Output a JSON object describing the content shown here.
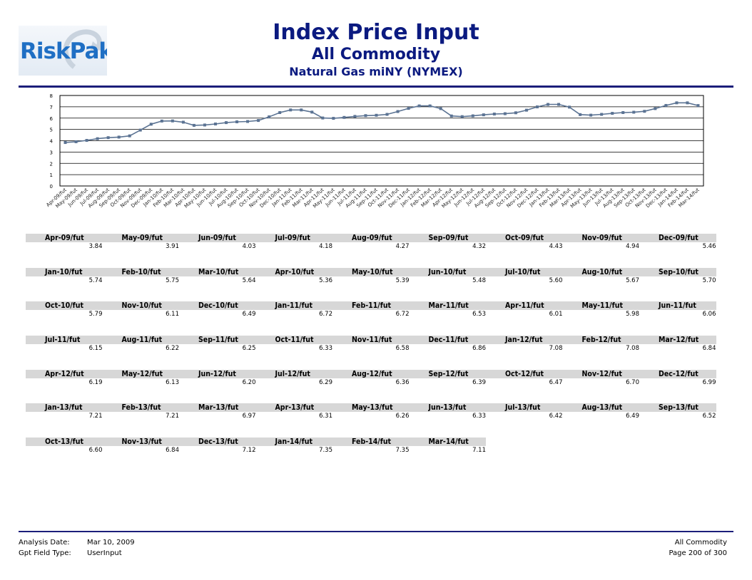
{
  "logo": {
    "text": "RiskPak"
  },
  "header": {
    "title": "Index Price Input",
    "subtitle": "All Commodity",
    "commodity": "Natural Gas miNY (NYMEX)"
  },
  "chart_data": {
    "type": "line",
    "x": [
      "Apr-09/fut",
      "May-09/fut",
      "Jun-09/fut",
      "Jul-09/fut",
      "Aug-09/fut",
      "Sep-09/fut",
      "Oct-09/fut",
      "Nov-09/fut",
      "Dec-09/fut",
      "Jan-10/fut",
      "Feb-10/fut",
      "Mar-10/fut",
      "Apr-10/fut",
      "May-10/fut",
      "Jun-10/fut",
      "Jul-10/fut",
      "Aug-10/fut",
      "Sep-10/fut",
      "Oct-10/fut",
      "Nov-10/fut",
      "Dec-10/fut",
      "Jan-11/fut",
      "Feb-11/fut",
      "Mar-11/fut",
      "Apr-11/fut",
      "May-11/fut",
      "Jun-11/fut",
      "Jul-11/fut",
      "Aug-11/fut",
      "Sep-11/fut",
      "Oct-11/fut",
      "Nov-11/fut",
      "Dec-11/fut",
      "Jan-12/fut",
      "Feb-12/fut",
      "Mar-12/fut",
      "Apr-12/fut",
      "May-12/fut",
      "Jun-12/fut",
      "Jul-12/fut",
      "Aug-12/fut",
      "Sep-12/fut",
      "Oct-12/fut",
      "Nov-12/fut",
      "Dec-12/fut",
      "Jan-13/fut",
      "Feb-13/fut",
      "Mar-13/fut",
      "Apr-13/fut",
      "May-13/fut",
      "Jun-13/fut",
      "Jul-13/fut",
      "Aug-13/fut",
      "Sep-13/fut",
      "Oct-13/fut",
      "Nov-13/fut",
      "Dec-13/fut",
      "Jan-14/fut",
      "Feb-14/fut",
      "Mar-14/fut"
    ],
    "series": [
      {
        "values": [
          3.84,
          3.91,
          4.03,
          4.18,
          4.27,
          4.32,
          4.43,
          4.94,
          5.46,
          5.74,
          5.75,
          5.64,
          5.36,
          5.39,
          5.48,
          5.6,
          5.67,
          5.7,
          5.79,
          6.11,
          6.49,
          6.72,
          6.72,
          6.53,
          6.01,
          5.98,
          6.06,
          6.15,
          6.22,
          6.25,
          6.33,
          6.58,
          6.86,
          7.08,
          7.08,
          6.84,
          6.19,
          6.13,
          6.2,
          6.29,
          6.36,
          6.39,
          6.47,
          6.7,
          6.99,
          7.21,
          7.21,
          6.97,
          6.31,
          6.26,
          6.33,
          6.42,
          6.49,
          6.52,
          6.6,
          6.84,
          7.12,
          7.35,
          7.35,
          7.11
        ]
      }
    ],
    "ylim": [
      0,
      8
    ],
    "yticks": [
      "0",
      "1",
      "2",
      "3",
      "4",
      "5",
      "6",
      "7",
      "8"
    ],
    "grid": true,
    "line_color": "#5b7393"
  },
  "table": {
    "rows": [
      [
        {
          "label": "Apr-09/fut",
          "value": "3.84"
        },
        {
          "label": "May-09/fut",
          "value": "3.91"
        },
        {
          "label": "Jun-09/fut",
          "value": "4.03"
        },
        {
          "label": "Jul-09/fut",
          "value": "4.18"
        },
        {
          "label": "Aug-09/fut",
          "value": "4.27"
        },
        {
          "label": "Sep-09/fut",
          "value": "4.32"
        },
        {
          "label": "Oct-09/fut",
          "value": "4.43"
        },
        {
          "label": "Nov-09/fut",
          "value": "4.94"
        },
        {
          "label": "Dec-09/fut",
          "value": "5.46"
        }
      ],
      [
        {
          "label": "Jan-10/fut",
          "value": "5.74"
        },
        {
          "label": "Feb-10/fut",
          "value": "5.75"
        },
        {
          "label": "Mar-10/fut",
          "value": "5.64"
        },
        {
          "label": "Apr-10/fut",
          "value": "5.36"
        },
        {
          "label": "May-10/fut",
          "value": "5.39"
        },
        {
          "label": "Jun-10/fut",
          "value": "5.48"
        },
        {
          "label": "Jul-10/fut",
          "value": "5.60"
        },
        {
          "label": "Aug-10/fut",
          "value": "5.67"
        },
        {
          "label": "Sep-10/fut",
          "value": "5.70"
        }
      ],
      [
        {
          "label": "Oct-10/fut",
          "value": "5.79"
        },
        {
          "label": "Nov-10/fut",
          "value": "6.11"
        },
        {
          "label": "Dec-10/fut",
          "value": "6.49"
        },
        {
          "label": "Jan-11/fut",
          "value": "6.72"
        },
        {
          "label": "Feb-11/fut",
          "value": "6.72"
        },
        {
          "label": "Mar-11/fut",
          "value": "6.53"
        },
        {
          "label": "Apr-11/fut",
          "value": "6.01"
        },
        {
          "label": "May-11/fut",
          "value": "5.98"
        },
        {
          "label": "Jun-11/fut",
          "value": "6.06"
        }
      ],
      [
        {
          "label": "Jul-11/fut",
          "value": "6.15"
        },
        {
          "label": "Aug-11/fut",
          "value": "6.22"
        },
        {
          "label": "Sep-11/fut",
          "value": "6.25"
        },
        {
          "label": "Oct-11/fut",
          "value": "6.33"
        },
        {
          "label": "Nov-11/fut",
          "value": "6.58"
        },
        {
          "label": "Dec-11/fut",
          "value": "6.86"
        },
        {
          "label": "Jan-12/fut",
          "value": "7.08"
        },
        {
          "label": "Feb-12/fut",
          "value": "7.08"
        },
        {
          "label": "Mar-12/fut",
          "value": "6.84"
        }
      ],
      [
        {
          "label": "Apr-12/fut",
          "value": "6.19"
        },
        {
          "label": "May-12/fut",
          "value": "6.13"
        },
        {
          "label": "Jun-12/fut",
          "value": "6.20"
        },
        {
          "label": "Jul-12/fut",
          "value": "6.29"
        },
        {
          "label": "Aug-12/fut",
          "value": "6.36"
        },
        {
          "label": "Sep-12/fut",
          "value": "6.39"
        },
        {
          "label": "Oct-12/fut",
          "value": "6.47"
        },
        {
          "label": "Nov-12/fut",
          "value": "6.70"
        },
        {
          "label": "Dec-12/fut",
          "value": "6.99"
        }
      ],
      [
        {
          "label": "Jan-13/fut",
          "value": "7.21"
        },
        {
          "label": "Feb-13/fut",
          "value": "7.21"
        },
        {
          "label": "Mar-13/fut",
          "value": "6.97"
        },
        {
          "label": "Apr-13/fut",
          "value": "6.31"
        },
        {
          "label": "May-13/fut",
          "value": "6.26"
        },
        {
          "label": "Jun-13/fut",
          "value": "6.33"
        },
        {
          "label": "Jul-13/fut",
          "value": "6.42"
        },
        {
          "label": "Aug-13/fut",
          "value": "6.49"
        },
        {
          "label": "Sep-13/fut",
          "value": "6.52"
        }
      ],
      [
        {
          "label": "Oct-13/fut",
          "value": "6.60"
        },
        {
          "label": "Nov-13/fut",
          "value": "6.84"
        },
        {
          "label": "Dec-13/fut",
          "value": "7.12"
        },
        {
          "label": "Jan-14/fut",
          "value": "7.35"
        },
        {
          "label": "Feb-14/fut",
          "value": "7.35"
        },
        {
          "label": "Mar-14/fut",
          "value": "7.11"
        }
      ]
    ]
  },
  "footer": {
    "analysis_date_label": "Analysis Date:",
    "analysis_date": "Mar 10, 2009",
    "field_type_label": "Gpt Field Type:",
    "field_type": "UserInput",
    "right_title": "All Commodity",
    "page": "Page 200 of 300"
  }
}
